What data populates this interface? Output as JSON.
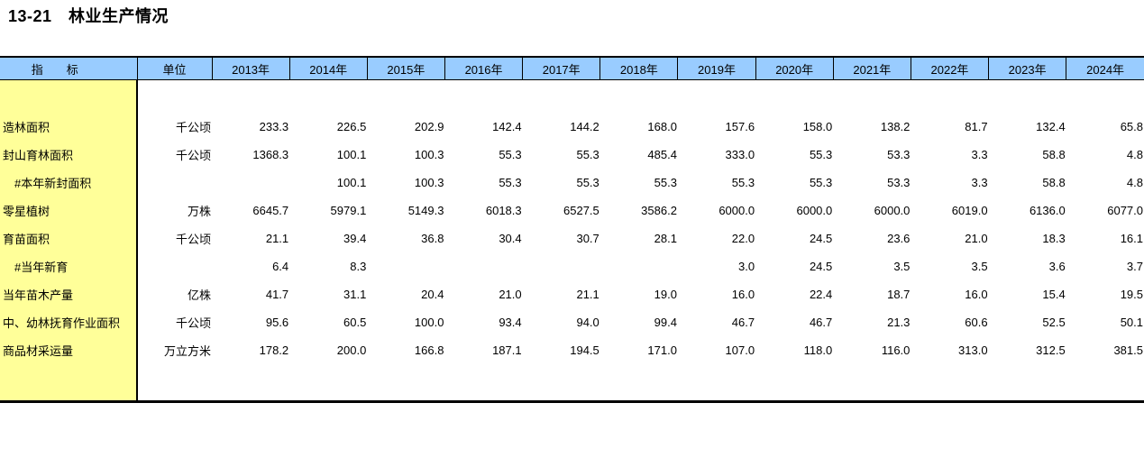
{
  "page_title": "13-21　林业生产情况",
  "colors": {
    "header_bg": "#99CCFF",
    "stub_bg": "#FFFF99",
    "border": "#000000",
    "text": "#000000"
  },
  "table": {
    "stub_header": "指　　标",
    "unit_header": "单位",
    "year_columns": [
      "2013年",
      "2014年",
      "2015年",
      "2016年",
      "2017年",
      "2018年",
      "2019年",
      "2020年",
      "2021年",
      "2022年",
      "2023年",
      "2024年"
    ],
    "rows": [
      {
        "indicator": "造林面积",
        "indent": false,
        "unit": "千公顷",
        "values": [
          "233.3",
          "226.5",
          "202.9",
          "142.4",
          "144.2",
          "168.0",
          "157.6",
          "158.0",
          "138.2",
          "81.7",
          "132.4",
          "65.8"
        ]
      },
      {
        "indicator": "封山育林面积",
        "indent": false,
        "unit": "千公顷",
        "values": [
          "1368.3",
          "100.1",
          "100.3",
          "55.3",
          "55.3",
          "485.4",
          "333.0",
          "55.3",
          "53.3",
          "3.3",
          "58.8",
          "4.8"
        ]
      },
      {
        "indicator": "#本年新封面积",
        "indent": true,
        "unit": "",
        "values": [
          "",
          "100.1",
          "100.3",
          "55.3",
          "55.3",
          "55.3",
          "55.3",
          "55.3",
          "53.3",
          "3.3",
          "58.8",
          "4.8"
        ]
      },
      {
        "indicator": "零星植树",
        "indent": false,
        "unit": "万株",
        "values": [
          "6645.7",
          "5979.1",
          "5149.3",
          "6018.3",
          "6527.5",
          "3586.2",
          "6000.0",
          "6000.0",
          "6000.0",
          "6019.0",
          "6136.0",
          "6077.0"
        ]
      },
      {
        "indicator": "育苗面积",
        "indent": false,
        "unit": "千公顷",
        "values": [
          "21.1",
          "39.4",
          "36.8",
          "30.4",
          "30.7",
          "28.1",
          "22.0",
          "24.5",
          "23.6",
          "21.0",
          "18.3",
          "16.1"
        ]
      },
      {
        "indicator": "#当年新育",
        "indent": true,
        "unit": "",
        "values": [
          "6.4",
          "8.3",
          "",
          "",
          "",
          "",
          "3.0",
          "24.5",
          "3.5",
          "3.5",
          "3.6",
          "3.7"
        ]
      },
      {
        "indicator": "当年苗木产量",
        "indent": false,
        "unit": "亿株",
        "values": [
          "41.7",
          "31.1",
          "20.4",
          "21.0",
          "21.1",
          "19.0",
          "16.0",
          "22.4",
          "18.7",
          "16.0",
          "15.4",
          "19.5"
        ]
      },
      {
        "indicator": "中、幼林抚育作业面积",
        "indent": false,
        "unit": "千公顷",
        "values": [
          "95.6",
          "60.5",
          "100.0",
          "93.4",
          "94.0",
          "99.4",
          "46.7",
          "46.7",
          "21.3",
          "60.6",
          "52.5",
          "50.1"
        ]
      },
      {
        "indicator": "商品材采运量",
        "indent": false,
        "unit": "万立方米",
        "values": [
          "178.2",
          "200.0",
          "166.8",
          "187.1",
          "194.5",
          "171.0",
          "107.0",
          "118.0",
          "116.0",
          "313.0",
          "312.5",
          "381.5"
        ]
      }
    ]
  }
}
